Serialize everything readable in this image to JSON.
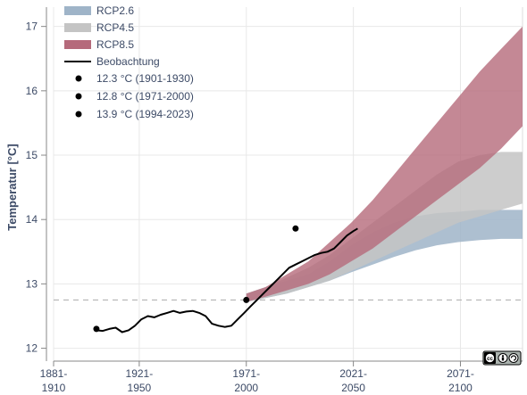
{
  "chart_data": {
    "type": "area",
    "ylabel": "Temperatur [°C]",
    "xlabel": "",
    "xlim": [
      1881,
      2100
    ],
    "ylim": [
      11.8,
      17.3
    ],
    "y_ticks": [
      12,
      13,
      14,
      15,
      16,
      17
    ],
    "x_ticks": [
      {
        "x": 1881,
        "label_top": "1881-",
        "label_bottom": "1910"
      },
      {
        "x": 1921,
        "label_top": "1921-",
        "label_bottom": "1950"
      },
      {
        "x": 1971,
        "label_top": "1971-",
        "label_bottom": "2000"
      },
      {
        "x": 2021,
        "label_top": "2021-",
        "label_bottom": "2050"
      },
      {
        "x": 2071,
        "label_top": "2071-",
        "label_bottom": "2100"
      }
    ],
    "grid": true,
    "legend_position": "top-left",
    "reference_line": {
      "y": 12.75,
      "style": "dashed"
    },
    "bands": [
      {
        "name": "RCP2.6",
        "color": "#9fb4c8",
        "x": [
          1971,
          1980,
          1990,
          2000,
          2010,
          2020,
          2030,
          2040,
          2050,
          2060,
          2070,
          2080,
          2090,
          2100
        ],
        "lower": [
          12.72,
          12.78,
          12.85,
          12.95,
          13.05,
          13.18,
          13.3,
          13.42,
          13.52,
          13.6,
          13.65,
          13.68,
          13.7,
          13.7
        ],
        "upper": [
          12.85,
          12.95,
          13.05,
          13.15,
          13.35,
          13.6,
          13.8,
          13.95,
          14.05,
          14.1,
          14.12,
          14.15,
          14.15,
          14.15
        ]
      },
      {
        "name": "RCP4.5",
        "color": "#c4c4c4",
        "x": [
          1971,
          1980,
          1990,
          2000,
          2010,
          2020,
          2030,
          2040,
          2050,
          2060,
          2070,
          2080,
          2090,
          2100
        ],
        "lower": [
          12.72,
          12.78,
          12.85,
          12.95,
          13.05,
          13.2,
          13.35,
          13.5,
          13.65,
          13.8,
          13.95,
          14.05,
          14.15,
          14.25
        ],
        "upper": [
          12.85,
          12.95,
          13.1,
          13.25,
          13.45,
          13.7,
          13.95,
          14.2,
          14.45,
          14.7,
          14.9,
          15.0,
          15.05,
          15.05
        ]
      },
      {
        "name": "RCP8.5",
        "color": "#b56a7b",
        "x": [
          1971,
          1980,
          1990,
          2000,
          2010,
          2020,
          2030,
          2040,
          2050,
          2060,
          2070,
          2080,
          2090,
          2100
        ],
        "lower": [
          12.72,
          12.8,
          12.9,
          13.0,
          13.15,
          13.35,
          13.55,
          13.8,
          14.05,
          14.3,
          14.55,
          14.8,
          15.1,
          15.45
        ],
        "upper": [
          12.85,
          12.95,
          13.15,
          13.35,
          13.65,
          13.95,
          14.3,
          14.7,
          15.1,
          15.5,
          15.9,
          16.3,
          16.65,
          17.0
        ]
      }
    ],
    "observation": {
      "name": "Beobachtung",
      "color": "#000000",
      "x": [
        1901,
        1904,
        1907,
        1910,
        1913,
        1916,
        1919,
        1922,
        1925,
        1928,
        1931,
        1934,
        1937,
        1940,
        1943,
        1946,
        1949,
        1952,
        1955,
        1958,
        1961,
        1964,
        1967,
        1970,
        1973,
        1976,
        1979,
        1982,
        1985,
        1988,
        1991,
        1994,
        1997,
        2000,
        2003,
        2006,
        2009,
        2012,
        2015,
        2018,
        2021,
        2023
      ],
      "y": [
        12.28,
        12.27,
        12.3,
        12.32,
        12.25,
        12.28,
        12.35,
        12.45,
        12.5,
        12.48,
        12.52,
        12.55,
        12.58,
        12.55,
        12.57,
        12.58,
        12.55,
        12.5,
        12.38,
        12.35,
        12.33,
        12.35,
        12.45,
        12.55,
        12.65,
        12.75,
        12.85,
        12.95,
        13.05,
        13.15,
        13.25,
        13.3,
        13.35,
        13.4,
        13.45,
        13.48,
        13.5,
        13.55,
        13.65,
        13.75,
        13.82,
        13.86
      ]
    },
    "points": [
      {
        "label": "12.3 °C (1901-1930)",
        "x": 1901,
        "y": 12.3
      },
      {
        "label": "12.8 °C (1971-2000)",
        "x": 1971,
        "y": 12.75
      },
      {
        "label": "13.9 °C (1994-2023)",
        "x": 1994,
        "y": 13.86
      }
    ]
  },
  "license_badge": "cc-by-sa"
}
